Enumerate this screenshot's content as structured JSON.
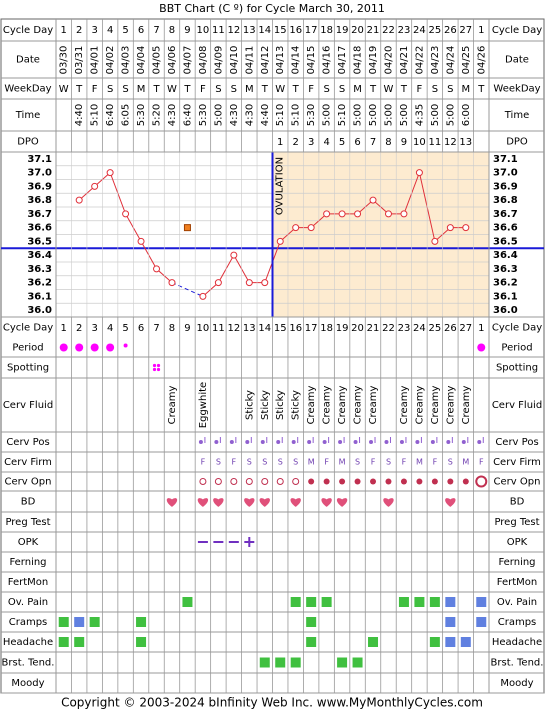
{
  "title": "BBT Chart (C º) for Cycle March 30, 2011",
  "row_labels": {
    "cycle_day": "Cycle Day",
    "date": "Date",
    "weekday": "WeekDay",
    "time": "Time",
    "dpo": "DPO",
    "period": "Period",
    "spotting": "Spotting",
    "cerv_fluid": "Cerv Fluid",
    "cerv_pos": "Cerv Pos",
    "cerv_firm": "Cerv Firm",
    "cerv_opn": "Cerv Opn",
    "bd": "BD",
    "preg_test": "Preg Test",
    "opk": "OPK",
    "ferning": "Ferning",
    "fertmon": "FertMon",
    "ov_pain": "Ov. Pain",
    "cramps": "Cramps",
    "headache": "Headache",
    "brst_tend": "Brst. Tend.",
    "moody": "Moody"
  },
  "cycle_days": [
    "1",
    "2",
    "3",
    "4",
    "5",
    "6",
    "7",
    "8",
    "9",
    "10",
    "11",
    "12",
    "13",
    "14",
    "15",
    "16",
    "17",
    "18",
    "19",
    "20",
    "21",
    "22",
    "23",
    "24",
    "25",
    "26",
    "27",
    "1"
  ],
  "dates": [
    "03/30",
    "03/31",
    "04/01",
    "04/02",
    "04/03",
    "04/04",
    "04/05",
    "04/06",
    "04/07",
    "04/08",
    "04/09",
    "04/10",
    "04/11",
    "04/12",
    "04/13",
    "04/14",
    "04/15",
    "04/16",
    "04/17",
    "04/18",
    "04/19",
    "04/20",
    "04/21",
    "04/22",
    "04/23",
    "04/24",
    "04/25",
    "04/26"
  ],
  "weekdays": [
    "W",
    "T",
    "F",
    "S",
    "S",
    "M",
    "T",
    "W",
    "T",
    "F",
    "S",
    "S",
    "M",
    "T",
    "W",
    "T",
    "F",
    "S",
    "S",
    "M",
    "T",
    "W",
    "T",
    "F",
    "S",
    "S",
    "M",
    "T"
  ],
  "times": [
    "",
    "4:40",
    "5:10",
    "6:40",
    "6:05",
    "5:30",
    "5:20",
    "4:30",
    "6:40",
    "5:30",
    "5:00",
    "4:30",
    "4:30",
    "4:40",
    "5:10",
    "5:10",
    "5:30",
    "5:00",
    "5:10",
    "5:00",
    "5:00",
    "5:00",
    "5:00",
    "4:35",
    "5:00",
    "5:00",
    "6:00",
    ""
  ],
  "dpo": [
    "",
    "",
    "",
    "",
    "",
    "",
    "",
    "",
    "",
    "",
    "",
    "",
    "",
    "",
    "1",
    "2",
    "3",
    "4",
    "5",
    "6",
    "7",
    "8",
    "9",
    "10",
    "11",
    "12",
    "13",
    ""
  ],
  "temp_labels": [
    "37.1",
    "37.0",
    "36.9",
    "36.8",
    "36.7",
    "36.6",
    "36.5",
    "36.4",
    "36.3",
    "36.2",
    "36.1",
    "36.0"
  ],
  "ovulation_label": "OVULATION",
  "cerv_fluid": [
    "",
    "",
    "",
    "",
    "",
    "",
    "",
    "Creamy",
    "",
    "Eggwhite",
    "",
    "",
    "Sticky",
    "Sticky",
    "Sticky",
    "Sticky",
    "Creamy",
    "Creamy",
    "Creamy",
    "Creamy",
    "Creamy",
    "",
    "Creamy",
    "Creamy",
    "Creamy",
    "Creamy",
    "Creamy",
    ""
  ],
  "cerv_firm": [
    "",
    "",
    "",
    "",
    "",
    "",
    "",
    "",
    "",
    "F",
    "S",
    "F",
    "S",
    "S",
    "S",
    "S",
    "M",
    "F",
    "M",
    "S",
    "F",
    "S",
    "F",
    "M",
    "F",
    "S",
    "M",
    "F"
  ],
  "cerv_pos": [
    0,
    0,
    0,
    0,
    0,
    0,
    0,
    0,
    0,
    1,
    1,
    1,
    1,
    1,
    1,
    1,
    1,
    1,
    1,
    1,
    1,
    1,
    1,
    1,
    1,
    1,
    1,
    1
  ],
  "cerv_opn": [
    0,
    0,
    0,
    0,
    0,
    0,
    0,
    0,
    0,
    1,
    1,
    1,
    1,
    1,
    1,
    1,
    2,
    2,
    2,
    2,
    2,
    2,
    2,
    2,
    2,
    2,
    2,
    3
  ],
  "period": [
    2,
    2,
    2,
    2,
    1,
    0,
    0,
    0,
    0,
    0,
    0,
    0,
    0,
    0,
    0,
    0,
    0,
    0,
    0,
    0,
    0,
    0,
    0,
    0,
    0,
    0,
    0,
    2
  ],
  "spotting": [
    0,
    0,
    0,
    0,
    0,
    0,
    1,
    0,
    0,
    0,
    0,
    0,
    0,
    0,
    0,
    0,
    0,
    0,
    0,
    0,
    0,
    0,
    0,
    0,
    0,
    0,
    0,
    0
  ],
  "bd": [
    0,
    0,
    0,
    0,
    0,
    0,
    0,
    1,
    0,
    1,
    1,
    0,
    1,
    1,
    0,
    1,
    0,
    1,
    1,
    0,
    0,
    1,
    0,
    0,
    0,
    1,
    0,
    0
  ],
  "opk": [
    0,
    0,
    0,
    0,
    0,
    0,
    0,
    0,
    0,
    1,
    1,
    1,
    2,
    0,
    0,
    0,
    0,
    0,
    0,
    0,
    0,
    0,
    0,
    0,
    0,
    0,
    0,
    0
  ],
  "ov_pain": [
    0,
    0,
    0,
    0,
    0,
    0,
    0,
    0,
    1,
    0,
    0,
    0,
    0,
    0,
    0,
    1,
    1,
    1,
    0,
    0,
    0,
    0,
    1,
    1,
    1,
    2,
    0,
    2
  ],
  "cramps": [
    1,
    2,
    1,
    0,
    0,
    1,
    0,
    0,
    0,
    0,
    0,
    0,
    0,
    0,
    0,
    0,
    1,
    0,
    0,
    0,
    0,
    0,
    0,
    0,
    0,
    2,
    0,
    2
  ],
  "headache": [
    1,
    1,
    0,
    0,
    0,
    1,
    0,
    0,
    0,
    0,
    0,
    0,
    0,
    0,
    0,
    0,
    1,
    0,
    0,
    0,
    1,
    0,
    0,
    0,
    1,
    2,
    2,
    0
  ],
  "brst_tend": [
    0,
    0,
    0,
    0,
    0,
    0,
    0,
    0,
    0,
    0,
    0,
    0,
    0,
    1,
    1,
    1,
    0,
    0,
    1,
    1,
    0,
    0,
    0,
    0,
    0,
    0,
    0,
    0
  ],
  "footer": "Copyright © 2003-2024 bInfinity Web Inc.    www.MyMonthlyCycles.com",
  "colors": {
    "temp_line": "#e0303a",
    "coverline": "#1a1ad8",
    "luteal_bg": "#fdebd0",
    "period": "#ff00ff",
    "bd_heart": "#e0507a",
    "symptom_green": "#40c040",
    "symptom_blue": "#6080e0",
    "opk": "#7030c0"
  },
  "chart_data": {
    "type": "line",
    "title": "BBT Chart (C º) for Cycle March 30, 2011",
    "xlabel": "Cycle Day",
    "ylabel": "",
    "ylim": [
      36.0,
      37.1
    ],
    "x": [
      1,
      2,
      3,
      4,
      5,
      6,
      7,
      8,
      9,
      10,
      11,
      12,
      13,
      14,
      15,
      16,
      17,
      18,
      19,
      20,
      21,
      22,
      23,
      24,
      25,
      26,
      27,
      28
    ],
    "series": [
      {
        "values": [
          null,
          36.8,
          36.9,
          37.0,
          36.7,
          36.5,
          36.3,
          36.2,
          null,
          36.1,
          36.2,
          36.4,
          36.2,
          36.2,
          36.5,
          36.6,
          36.6,
          36.7,
          36.7,
          36.7,
          36.8,
          36.7,
          36.7,
          37.0,
          36.5,
          36.6,
          36.6,
          null
        ]
      }
    ],
    "excluded_points": [
      {
        "x": 9,
        "y": 36.6
      }
    ],
    "coverline": 36.45,
    "ovulation_day": 14,
    "grid": true
  }
}
